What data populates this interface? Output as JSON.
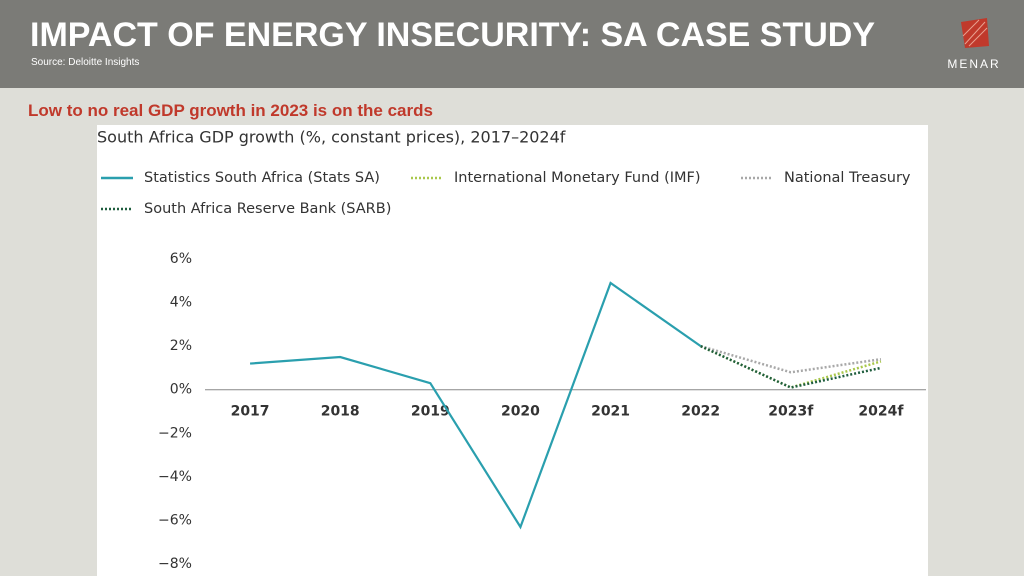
{
  "header": {
    "title": "IMPACT OF ENERGY INSECURITY: SA CASE STUDY",
    "source": "Source: Deloitte Insights",
    "logo": "MENAR"
  },
  "subtitle": "Low to no real GDP growth in 2023 is on the cards",
  "chart_data": {
    "type": "line",
    "title": "South Africa GDP growth (%, constant prices), 2017–2024f",
    "categories": [
      "2017",
      "2018",
      "2019",
      "2020",
      "2021",
      "2022",
      "2023f",
      "2024f"
    ],
    "series": [
      {
        "name": "Statistics South Africa (Stats SA)",
        "color": "#2a9fae",
        "style": "solid",
        "values": [
          1.2,
          1.5,
          0.3,
          -6.3,
          4.9,
          2.0,
          null,
          null
        ]
      },
      {
        "name": "International Monetary Fund (IMF)",
        "color": "#a9c84c",
        "style": "dotted",
        "values": [
          null,
          null,
          null,
          null,
          null,
          2.0,
          0.1,
          1.3
        ]
      },
      {
        "name": "National Treasury",
        "color": "#a8a8a8",
        "style": "dotted",
        "values": [
          null,
          null,
          null,
          null,
          null,
          2.0,
          0.8,
          1.4
        ]
      },
      {
        "name": "South Africa Reserve Bank (SARB)",
        "color": "#1f5e3e",
        "style": "dotted",
        "values": [
          null,
          null,
          null,
          null,
          null,
          2.0,
          0.1,
          1.0
        ]
      }
    ],
    "ylim": [
      -8,
      6
    ],
    "yticks": [
      {
        "value": 6,
        "label": "6%"
      },
      {
        "value": 4,
        "label": "4%"
      },
      {
        "value": 2,
        "label": "2%"
      },
      {
        "value": 0,
        "label": "0%"
      },
      {
        "value": -2,
        "label": "−2%"
      },
      {
        "value": -4,
        "label": "−4%"
      },
      {
        "value": -6,
        "label": "−6%"
      },
      {
        "value": -8,
        "label": "−8%"
      }
    ],
    "grid": false
  }
}
